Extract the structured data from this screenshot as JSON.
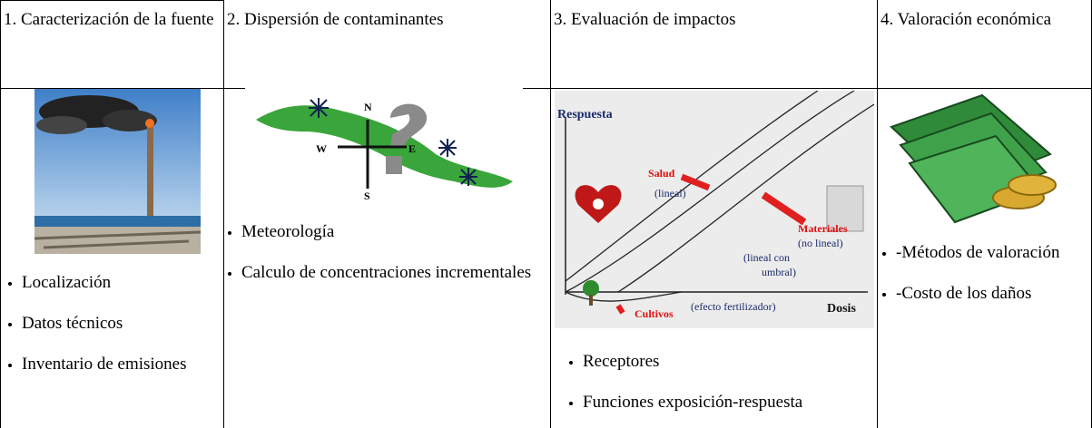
{
  "columns": [
    {
      "header": "1. Caracterización de la fuente",
      "bullets": [
        "Localización",
        "Datos técnicos",
        "Inventario de emisiones"
      ]
    },
    {
      "header": "2. Dispersión de contaminantes",
      "compass": {
        "north": "N",
        "west": "W",
        "east": "E",
        "south": "S"
      },
      "bullets": [
        "Meteorología",
        "Calculo de concentraciones incrementales"
      ]
    },
    {
      "header": "3. Evaluación de impactos",
      "chart_labels": {
        "y_axis": "Respuesta",
        "salud": "Salud",
        "salud_type": "(lineal)",
        "materiales": "Materiales",
        "materiales_type": "(no lineal)",
        "umbral_1": "(lineal con",
        "umbral_2": "umbral)",
        "cultivos": "Cultivos",
        "cultivos_type": "(efecto fertilizador)",
        "x_axis": "Dosis"
      },
      "bullets": [
        "Receptores",
        "Funciones exposición-respuesta"
      ]
    },
    {
      "header": "4. Valoración económica",
      "bullets": [
        "-Métodos de valoración",
        "-Costo de los daños"
      ]
    }
  ]
}
